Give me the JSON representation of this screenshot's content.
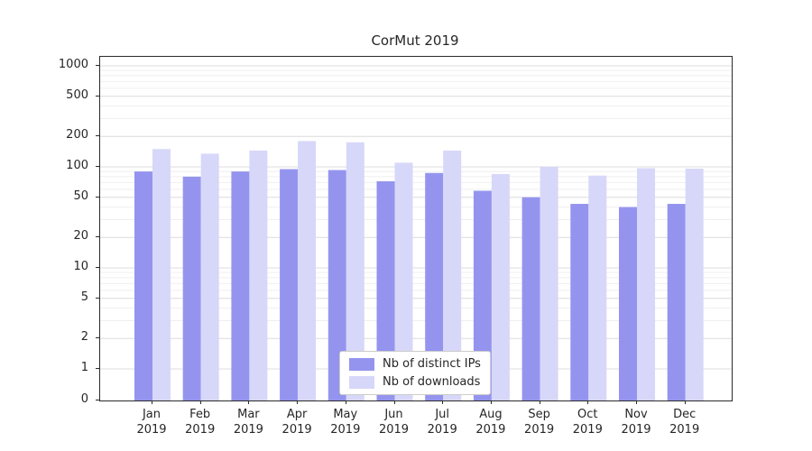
{
  "chart_data": {
    "type": "bar",
    "title": "CorMut 2019",
    "yscale": "symlog",
    "grid": true,
    "legend_position": "lower center",
    "year_label": "2019",
    "categories": [
      "Jan",
      "Feb",
      "Mar",
      "Apr",
      "May",
      "Jun",
      "Jul",
      "Aug",
      "Sep",
      "Oct",
      "Nov",
      "Dec"
    ],
    "yticks": [
      0,
      1,
      2,
      5,
      10,
      20,
      50,
      100,
      200,
      500,
      1000
    ],
    "ylim": [
      0,
      1200
    ],
    "series": [
      {
        "name": "Nb of distinct IPs",
        "color": "#9494ef",
        "values": [
          90,
          80,
          90,
          95,
          93,
          72,
          87,
          58,
          50,
          43,
          40,
          43
        ]
      },
      {
        "name": "Nb of downloads",
        "color": "#d7d7f9",
        "values": [
          150,
          135,
          145,
          180,
          175,
          110,
          145,
          85,
          100,
          82,
          97,
          96
        ]
      }
    ]
  }
}
